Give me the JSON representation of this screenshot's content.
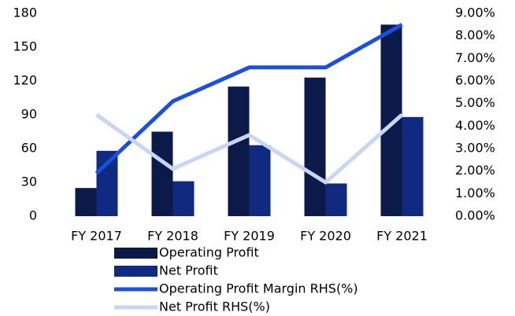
{
  "chart_data": {
    "type": "bar-line",
    "categories": [
      "FY 2017",
      "FY 2018",
      "FY 2019",
      "FY 2020",
      "FY 2021"
    ],
    "series": [
      {
        "name": "Operating Profit",
        "type": "bar",
        "color": "#0c1a4a",
        "values": [
          25,
          75,
          115,
          123,
          170
        ]
      },
      {
        "name": "Net Profit",
        "type": "bar",
        "color": "#0f2a80",
        "values": [
          58,
          31,
          63,
          29,
          88
        ]
      },
      {
        "name": "Operating Profit Margin RHS(%)",
        "type": "line",
        "axis": "y2",
        "color": "#1a4fe0",
        "values": [
          1.9,
          5.1,
          6.6,
          6.6,
          8.5
        ]
      },
      {
        "name": "Net Profit RHS(%)",
        "type": "line",
        "axis": "y2",
        "color": "#c8d6f5",
        "values": [
          4.5,
          2.1,
          3.6,
          1.5,
          4.5
        ]
      }
    ],
    "ylim": [
      0,
      180
    ],
    "yticks": [
      0,
      30,
      60,
      90,
      120,
      150,
      180
    ],
    "y2lim": [
      0,
      9
    ],
    "y2ticks": [
      {
        "value": 0,
        "label": "0.00%"
      },
      {
        "value": 1,
        "label": "1.00%"
      },
      {
        "value": 2,
        "label": "2.00%"
      },
      {
        "value": 3,
        "label": "3.00%"
      },
      {
        "value": 4,
        "label": "4.00%"
      },
      {
        "value": 5,
        "label": "5.00%"
      },
      {
        "value": 6,
        "label": "6.00%"
      },
      {
        "value": 7,
        "label": "7.00%"
      },
      {
        "value": 8,
        "label": "8.00%"
      },
      {
        "value": 9,
        "label": "9.00%"
      }
    ],
    "grid": false,
    "legend": "bottom"
  }
}
